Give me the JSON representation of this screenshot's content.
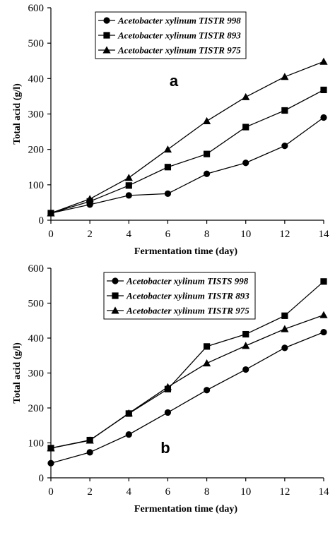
{
  "chart_data": [
    {
      "type": "line",
      "panel_label": "a",
      "xlabel": "Fermentation time (day)",
      "ylabel": "Total acid (g/l)",
      "xlim": [
        0,
        14
      ],
      "ylim": [
        0,
        600
      ],
      "xticks": [
        "0",
        "2",
        "4",
        "6",
        "8",
        "10",
        "12",
        "14"
      ],
      "yticks": [
        "0",
        "100",
        "200",
        "300",
        "400",
        "500",
        "600"
      ],
      "legend_position": "top-center",
      "grid": false,
      "x": [
        0,
        2,
        4,
        6,
        8,
        10,
        12,
        14
      ],
      "series": [
        {
          "name": "Acetobacter xylinum TISTR 998",
          "marker": "circle",
          "values": [
            20,
            44,
            70,
            75,
            131,
            162,
            210,
            290
          ]
        },
        {
          "name": "Acetobacter xylinum TISTR 893",
          "marker": "square",
          "values": [
            20,
            53,
            98,
            150,
            187,
            263,
            310,
            368
          ]
        },
        {
          "name": "Acetobacter xylinum TISTR 975",
          "marker": "triangle",
          "values": [
            20,
            60,
            120,
            200,
            280,
            348,
            405,
            448
          ]
        }
      ]
    },
    {
      "type": "line",
      "panel_label": "b",
      "xlabel": "Fermentation time (day)",
      "ylabel": "Total acid (g/l)",
      "xlim": [
        0,
        14
      ],
      "ylim": [
        0,
        600
      ],
      "xticks": [
        "0",
        "2",
        "4",
        "6",
        "8",
        "10",
        "12",
        "14"
      ],
      "yticks": [
        "0",
        "100",
        "200",
        "300",
        "400",
        "500",
        "600"
      ],
      "legend_position": "top-right",
      "grid": false,
      "x": [
        0,
        2,
        4,
        6,
        8,
        10,
        12,
        14
      ],
      "series": [
        {
          "name": "Acetobacter xylinum TISTS 998",
          "marker": "circle",
          "values": [
            42,
            73,
            124,
            187,
            251,
            310,
            372,
            417
          ]
        },
        {
          "name": "Acetobacter xylinum TISTR 893",
          "marker": "square",
          "values": [
            85,
            108,
            184,
            254,
            376,
            411,
            464,
            562
          ]
        },
        {
          "name": "Acetobacter xylinum TISTR 975",
          "marker": "triangle",
          "values": [
            85,
            107,
            185,
            260,
            328,
            378,
            426,
            466
          ]
        }
      ]
    }
  ]
}
